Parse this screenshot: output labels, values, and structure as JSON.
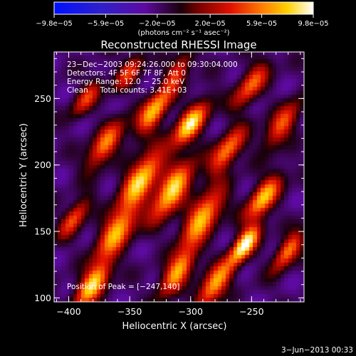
{
  "chart_data": {
    "type": "heatmap",
    "title": "Reconstructed RHESSI Image",
    "xlabel": "Heliocentric X (arcsec)",
    "ylabel": "Heliocentric Y (arcsec)",
    "xlim": [
      -412,
      -207
    ],
    "ylim": [
      97,
      285
    ],
    "x_ticks": [
      -400,
      -350,
      -300,
      -250
    ],
    "x_tick_labels": [
      "−400",
      "−350",
      "−300",
      "−250"
    ],
    "y_ticks": [
      100,
      150,
      200,
      250
    ],
    "y_tick_labels": [
      "100",
      "150",
      "200",
      "250"
    ],
    "colorbar": {
      "range": [
        -9.8e-05,
        9.8e-05
      ],
      "tick_values": [
        -9.8e-05,
        -5.9e-05,
        -2e-05,
        2e-05,
        5.9e-05,
        9.8e-05
      ],
      "tick_labels": [
        "−9.8e−05",
        "−5.9e−05",
        "−2.0e−05",
        "2.0e−05",
        "5.9e−05",
        "9.8e−05"
      ],
      "unit_label": "(photons cm⁻² s⁻¹ asec⁻²)",
      "colormap": "rainbow-black-red-yellow-white"
    },
    "annotations": {
      "time": "23−Dec−2003 09:24:26.000 to 09:30:04.000",
      "detectors": "Detectors: 4F 5F 6F 7F 8F, Att 0",
      "energy": "Energy Range: 12.0 − 25.0 keV",
      "clean": "Clean     Total counts: 3.41E+03",
      "peak": "Position of Peak = [−247,140]"
    },
    "peak": {
      "x": -247,
      "y": 140
    },
    "date_stamp": "3−Jun−2013 00:33"
  }
}
